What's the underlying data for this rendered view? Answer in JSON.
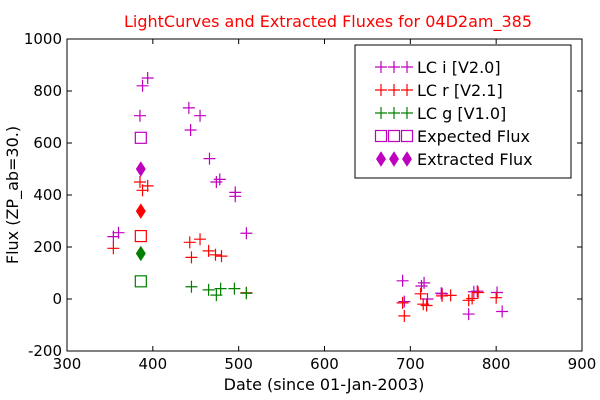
{
  "chart_data": {
    "type": "scatter",
    "title": "LightCurves and Extracted Fluxes for 04D2am_385",
    "title_color": "#ff0000",
    "xlabel": "Date (since 01-Jan-2003)",
    "ylabel": "Flux (ZP_ab=30.)",
    "xlim": [
      300,
      900
    ],
    "ylim": [
      -200,
      1000
    ],
    "xticks": [
      300,
      400,
      500,
      600,
      700,
      800,
      900
    ],
    "yticks": [
      -200,
      0,
      200,
      400,
      600,
      800,
      1000
    ],
    "grid": false,
    "legend_position": "top-right",
    "series": [
      {
        "name": "LC i [V2.0]",
        "color": "#bf00bf",
        "marker": "plus",
        "points": [
          [
            354,
            240
          ],
          [
            360,
            255
          ],
          [
            385,
            705
          ],
          [
            388,
            820
          ],
          [
            394,
            850
          ],
          [
            442,
            735
          ],
          [
            444,
            650
          ],
          [
            455,
            705
          ],
          [
            466,
            540
          ],
          [
            474,
            450
          ],
          [
            478,
            460
          ],
          [
            496,
            410
          ],
          [
            496,
            395
          ],
          [
            509,
            253
          ],
          [
            691,
            70
          ],
          [
            693,
            -10
          ],
          [
            713,
            50
          ],
          [
            716,
            62
          ],
          [
            720,
            0
          ],
          [
            736,
            22
          ],
          [
            737,
            20
          ],
          [
            768,
            -58
          ],
          [
            774,
            28
          ],
          [
            778,
            30
          ],
          [
            801,
            25
          ],
          [
            807,
            -48
          ]
        ]
      },
      {
        "name": "LC r [V2.1]",
        "color": "#ff0000",
        "marker": "plus",
        "points": [
          [
            354,
            195
          ],
          [
            385,
            450
          ],
          [
            388,
            418
          ],
          [
            394,
            435
          ],
          [
            443,
            218
          ],
          [
            445,
            160
          ],
          [
            455,
            230
          ],
          [
            465,
            185
          ],
          [
            473,
            170
          ],
          [
            480,
            165
          ],
          [
            509,
            24
          ],
          [
            691,
            -15
          ],
          [
            693,
            -65
          ],
          [
            712,
            20
          ],
          [
            715,
            -20
          ],
          [
            719,
            -25
          ],
          [
            737,
            12
          ],
          [
            747,
            14
          ],
          [
            768,
            -5
          ],
          [
            772,
            2
          ],
          [
            779,
            25
          ],
          [
            800,
            5
          ]
        ]
      },
      {
        "name": "LC g [V1.0]",
        "color": "#008000",
        "marker": "plus",
        "points": [
          [
            445,
            47
          ],
          [
            465,
            35
          ],
          [
            474,
            15
          ],
          [
            479,
            40
          ],
          [
            495,
            40
          ],
          [
            509,
            22
          ]
        ]
      },
      {
        "name": "Expected Flux",
        "color": "#bf00bf",
        "marker": "square",
        "points": [
          [
            386,
            620
          ],
          [
            386,
            242
          ],
          [
            386,
            68
          ]
        ],
        "point_colors": [
          "#bf00bf",
          "#ff0000",
          "#008000"
        ]
      },
      {
        "name": "Extracted Flux",
        "color": "#bf00bf",
        "marker": "diamond",
        "points": [
          [
            386,
            500
          ],
          [
            386,
            338
          ],
          [
            386,
            175
          ]
        ],
        "point_colors": [
          "#bf00bf",
          "#ff0000",
          "#008000"
        ]
      }
    ]
  }
}
